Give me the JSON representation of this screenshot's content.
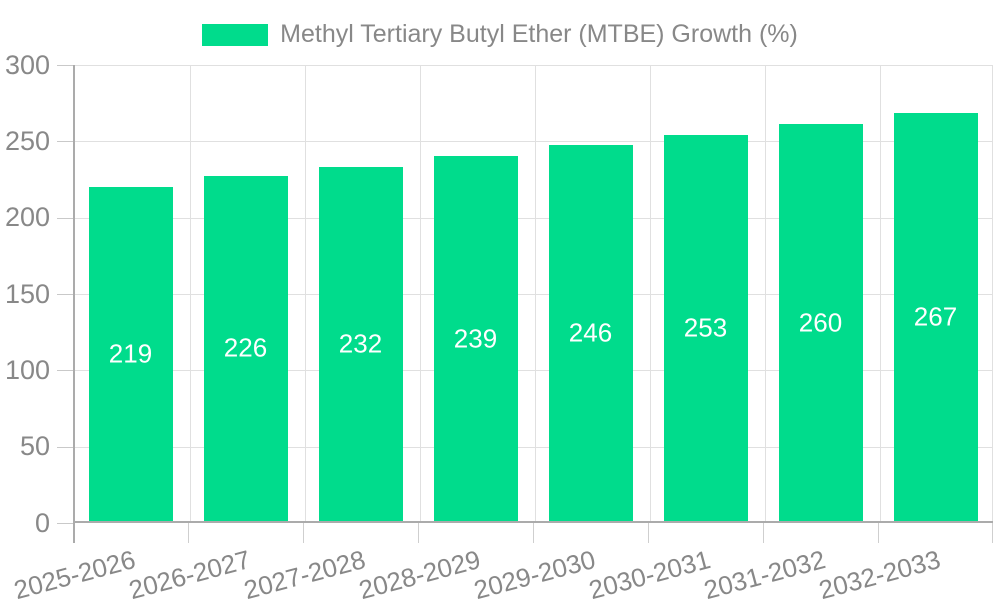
{
  "chart_data": {
    "type": "bar",
    "legend": "Methyl Tertiary Butyl Ether (MTBE) Growth (%)",
    "legend_position": "top",
    "categories": [
      "2025-2026",
      "2026-2027",
      "2027-2028",
      "2028-2029",
      "2029-2030",
      "2030-2031",
      "2031-2032",
      "2032-2033"
    ],
    "values": [
      219,
      226,
      232,
      239,
      246,
      253,
      260,
      267
    ],
    "title": "",
    "xlabel": "",
    "ylabel": "",
    "ylim": [
      0,
      300
    ],
    "yticks": [
      0,
      50,
      100,
      150,
      200,
      250,
      300
    ],
    "grid": true,
    "bar_color": "#00dc8c",
    "bar_label_color": "#ffffff",
    "axis_text_color": "#888888",
    "grid_color": "#e0e0e0",
    "axis_line_color": "#ababab"
  }
}
